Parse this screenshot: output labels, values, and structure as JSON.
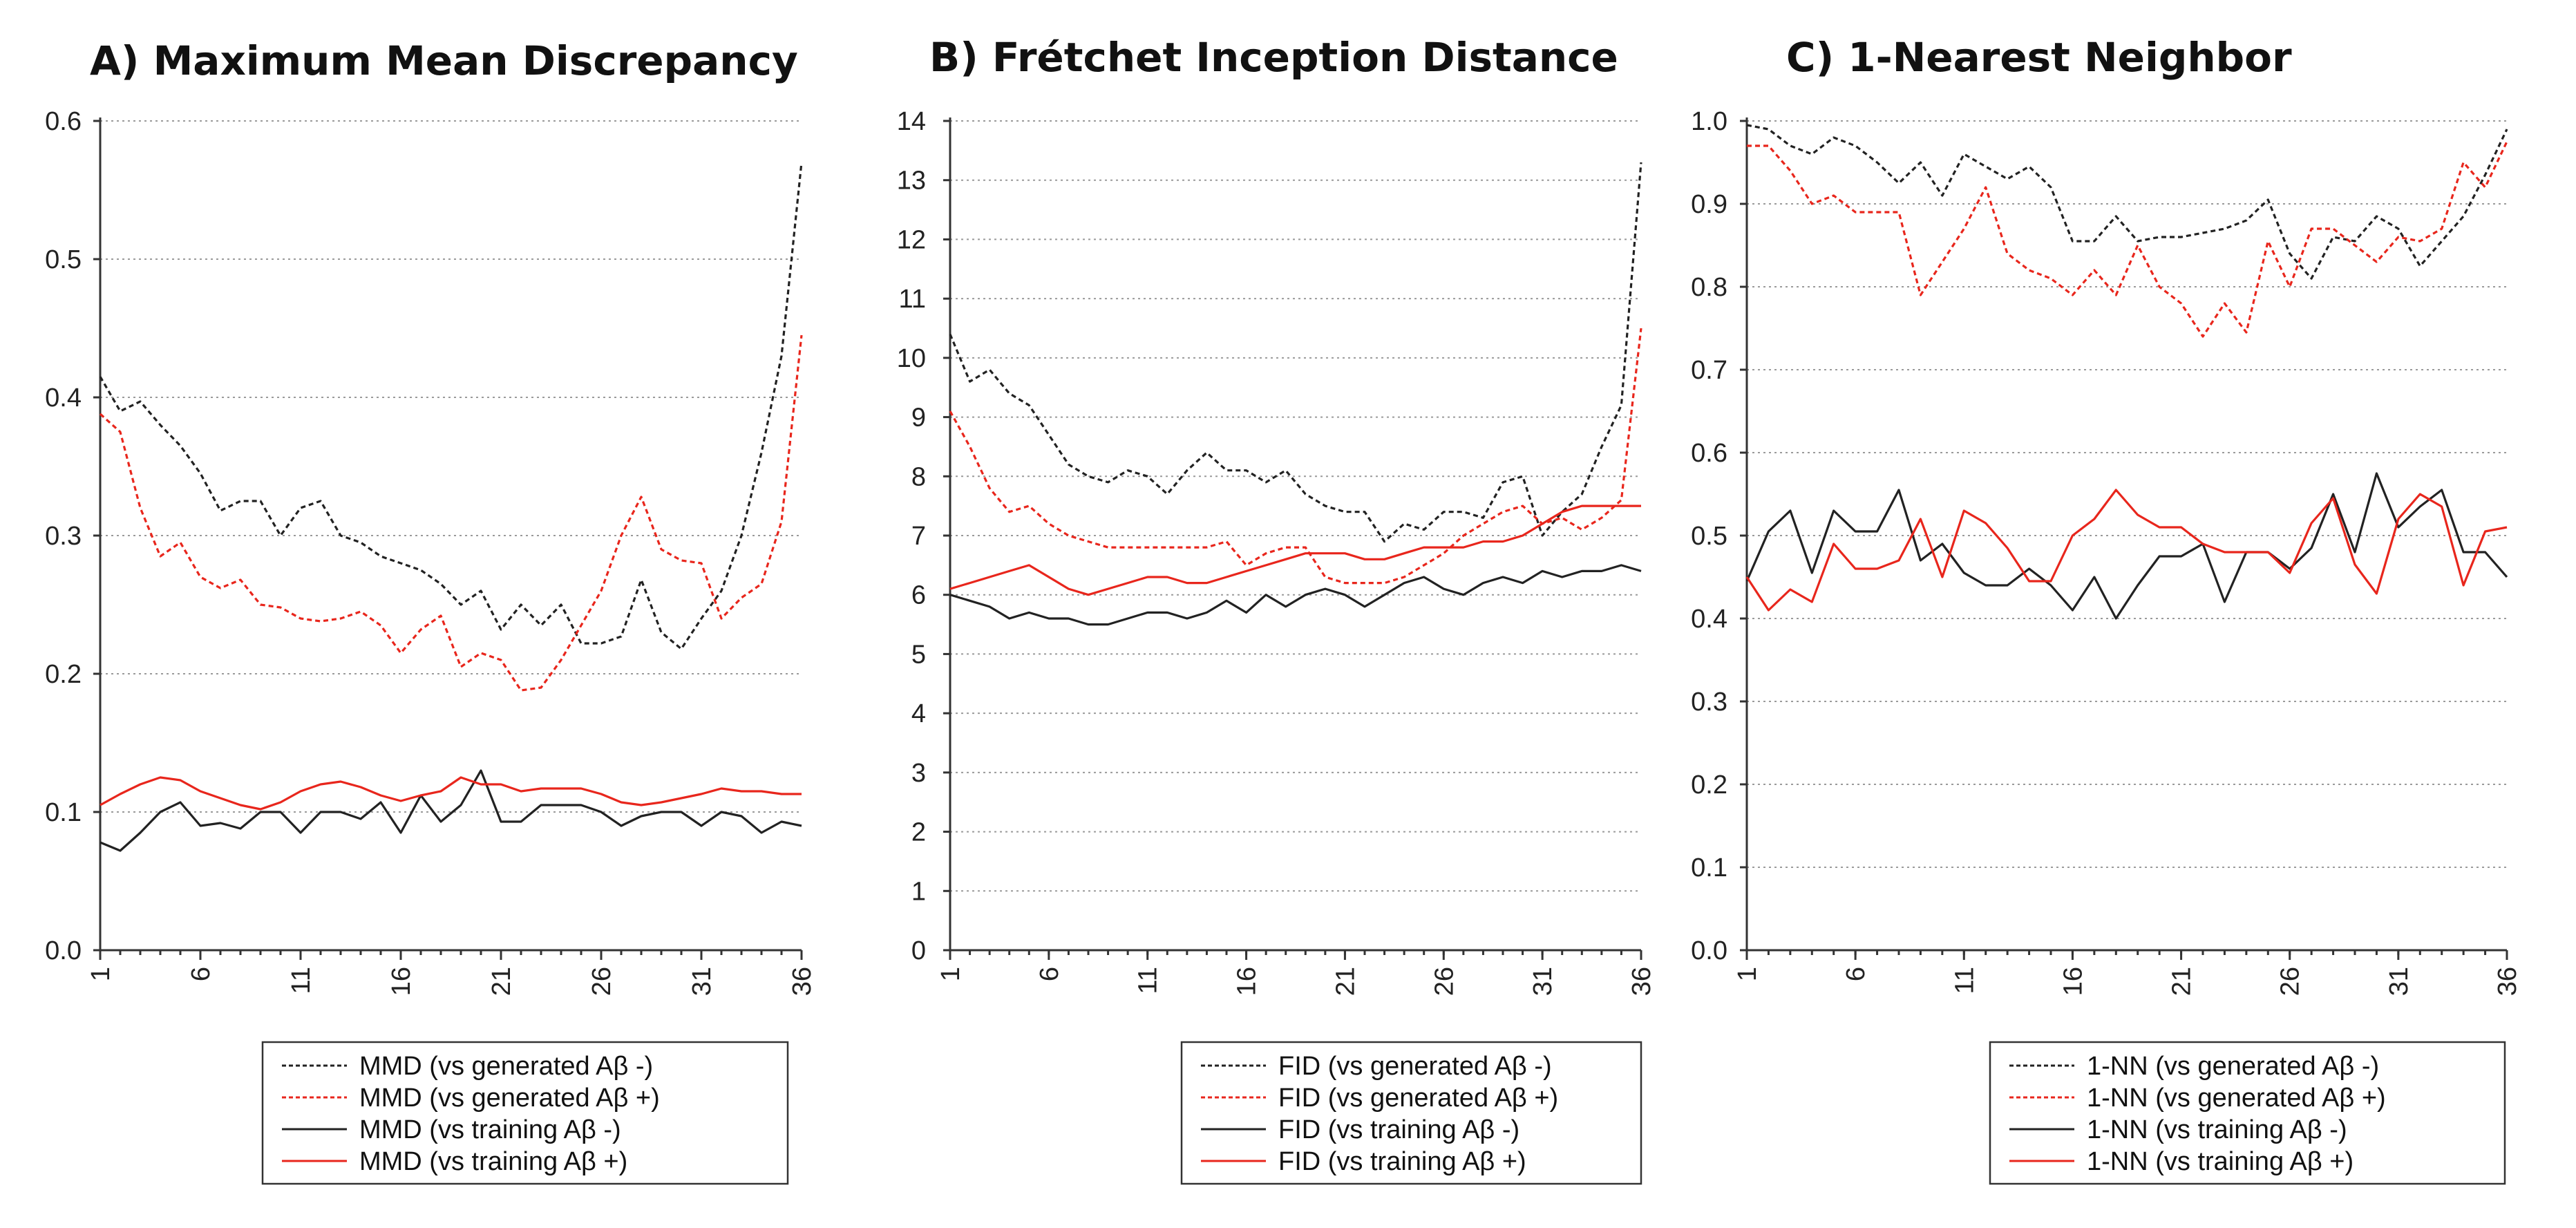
{
  "chart_data": [
    {
      "type": "line",
      "title": "A) Maximum Mean Discrepancy",
      "xlabel": "",
      "ylabel": "",
      "ylim": [
        0,
        0.6
      ],
      "y_ticks": [
        "0.0",
        "0.1",
        "0.2",
        "0.3",
        "0.4",
        "0.5",
        "0.6"
      ],
      "x": [
        1,
        2,
        3,
        4,
        5,
        6,
        7,
        8,
        9,
        10,
        11,
        12,
        13,
        14,
        15,
        16,
        17,
        18,
        19,
        20,
        21,
        22,
        23,
        24,
        25,
        26,
        27,
        28,
        29,
        30,
        31,
        32,
        33,
        34,
        35,
        36
      ],
      "x_ticks": [
        "1",
        "6",
        "11",
        "16",
        "21",
        "26",
        "31",
        "36"
      ],
      "grid": true,
      "series": [
        {
          "name": "MMD (vs generated Aβ -)",
          "color": "#222222",
          "dashed": true,
          "values": [
            0.415,
            0.39,
            0.397,
            0.38,
            0.365,
            0.345,
            0.318,
            0.325,
            0.325,
            0.3,
            0.32,
            0.325,
            0.3,
            0.295,
            0.285,
            0.28,
            0.275,
            0.265,
            0.25,
            0.26,
            0.232,
            0.25,
            0.235,
            0.25,
            0.222,
            0.222,
            0.227,
            0.268,
            0.23,
            0.218,
            0.24,
            0.26,
            0.3,
            0.36,
            0.43,
            0.57
          ]
        },
        {
          "name": "MMD (vs generated Aβ +)",
          "color": "#e8261c",
          "dashed": true,
          "values": [
            0.388,
            0.375,
            0.32,
            0.285,
            0.295,
            0.27,
            0.262,
            0.268,
            0.25,
            0.248,
            0.24,
            0.238,
            0.24,
            0.245,
            0.235,
            0.215,
            0.232,
            0.242,
            0.205,
            0.215,
            0.21,
            0.188,
            0.19,
            0.21,
            0.235,
            0.26,
            0.3,
            0.328,
            0.29,
            0.282,
            0.28,
            0.24,
            0.255,
            0.265,
            0.31,
            0.445
          ]
        },
        {
          "name": "MMD (vs training Aβ -)",
          "color": "#222222",
          "dashed": false,
          "values": [
            0.078,
            0.072,
            0.085,
            0.1,
            0.107,
            0.09,
            0.092,
            0.088,
            0.1,
            0.1,
            0.085,
            0.1,
            0.1,
            0.095,
            0.107,
            0.085,
            0.112,
            0.093,
            0.105,
            0.13,
            0.093,
            0.093,
            0.105,
            0.105,
            0.105,
            0.1,
            0.09,
            0.097,
            0.1,
            0.1,
            0.09,
            0.1,
            0.097,
            0.085,
            0.093,
            0.09
          ]
        },
        {
          "name": "MMD (vs training Aβ +)",
          "color": "#e8261c",
          "dashed": false,
          "values": [
            0.105,
            0.113,
            0.12,
            0.125,
            0.123,
            0.115,
            0.11,
            0.105,
            0.102,
            0.107,
            0.115,
            0.12,
            0.122,
            0.118,
            0.112,
            0.108,
            0.112,
            0.115,
            0.125,
            0.12,
            0.12,
            0.115,
            0.117,
            0.117,
            0.117,
            0.113,
            0.107,
            0.105,
            0.107,
            0.11,
            0.113,
            0.117,
            0.115,
            0.115,
            0.113,
            0.113
          ]
        }
      ]
    },
    {
      "type": "line",
      "title": "B) Frétchet Inception Distance",
      "xlabel": "",
      "ylabel": "",
      "ylim": [
        0,
        14
      ],
      "y_ticks": [
        "0",
        "1",
        "2",
        "3",
        "4",
        "5",
        "6",
        "7",
        "8",
        "9",
        "10",
        "11",
        "12",
        "13",
        "14"
      ],
      "x": [
        1,
        2,
        3,
        4,
        5,
        6,
        7,
        8,
        9,
        10,
        11,
        12,
        13,
        14,
        15,
        16,
        17,
        18,
        19,
        20,
        21,
        22,
        23,
        24,
        25,
        26,
        27,
        28,
        29,
        30,
        31,
        32,
        33,
        34,
        35,
        36
      ],
      "x_ticks": [
        "1",
        "6",
        "11",
        "16",
        "21",
        "26",
        "31",
        "36"
      ],
      "grid": true,
      "series": [
        {
          "name": "FID (vs generated Aβ -)",
          "color": "#222222",
          "dashed": true,
          "values": [
            10.4,
            9.6,
            9.8,
            9.4,
            9.2,
            8.7,
            8.2,
            8.0,
            7.9,
            8.1,
            8.0,
            7.7,
            8.1,
            8.4,
            8.1,
            8.1,
            7.9,
            8.1,
            7.7,
            7.5,
            7.4,
            7.4,
            6.9,
            7.2,
            7.1,
            7.4,
            7.4,
            7.3,
            7.9,
            8.0,
            7.0,
            7.4,
            7.7,
            8.5,
            9.2,
            13.3
          ]
        },
        {
          "name": "FID (vs generated Aβ +)",
          "color": "#e8261c",
          "dashed": true,
          "values": [
            9.1,
            8.5,
            7.8,
            7.4,
            7.5,
            7.2,
            7.0,
            6.9,
            6.8,
            6.8,
            6.8,
            6.8,
            6.8,
            6.8,
            6.9,
            6.5,
            6.7,
            6.8,
            6.8,
            6.3,
            6.2,
            6.2,
            6.2,
            6.3,
            6.5,
            6.7,
            7.0,
            7.2,
            7.4,
            7.5,
            7.2,
            7.3,
            7.1,
            7.3,
            7.6,
            10.5
          ]
        },
        {
          "name": "FID (vs training Aβ -)",
          "color": "#222222",
          "dashed": false,
          "values": [
            6.0,
            5.9,
            5.8,
            5.6,
            5.7,
            5.6,
            5.6,
            5.5,
            5.5,
            5.6,
            5.7,
            5.7,
            5.6,
            5.7,
            5.9,
            5.7,
            6.0,
            5.8,
            6.0,
            6.1,
            6.0,
            5.8,
            6.0,
            6.2,
            6.3,
            6.1,
            6.0,
            6.2,
            6.3,
            6.2,
            6.4,
            6.3,
            6.4,
            6.4,
            6.5,
            6.4
          ]
        },
        {
          "name": "FID (vs training Aβ +)",
          "color": "#e8261c",
          "dashed": false,
          "values": [
            6.1,
            6.2,
            6.3,
            6.4,
            6.5,
            6.3,
            6.1,
            6.0,
            6.1,
            6.2,
            6.3,
            6.3,
            6.2,
            6.2,
            6.3,
            6.4,
            6.5,
            6.6,
            6.7,
            6.7,
            6.7,
            6.6,
            6.6,
            6.7,
            6.8,
            6.8,
            6.8,
            6.9,
            6.9,
            7.0,
            7.2,
            7.4,
            7.5,
            7.5,
            7.5,
            7.5
          ]
        }
      ]
    },
    {
      "type": "line",
      "title": "C) 1-Nearest Neighbor",
      "xlabel": "",
      "ylabel": "",
      "ylim": [
        0,
        1.0
      ],
      "y_ticks": [
        "0.0",
        "0.1",
        "0.2",
        "0.3",
        "0.4",
        "0.5",
        "0.6",
        "0.7",
        "0.8",
        "0.9",
        "1.0"
      ],
      "x": [
        1,
        2,
        3,
        4,
        5,
        6,
        7,
        8,
        9,
        10,
        11,
        12,
        13,
        14,
        15,
        16,
        17,
        18,
        19,
        20,
        21,
        22,
        23,
        24,
        25,
        26,
        27,
        28,
        29,
        30,
        31,
        32,
        33,
        34,
        35,
        36
      ],
      "x_ticks": [
        "1",
        "6",
        "11",
        "16",
        "21",
        "26",
        "31",
        "36"
      ],
      "grid": true,
      "series": [
        {
          "name": "1-NN (vs generated Aβ -)",
          "color": "#222222",
          "dashed": true,
          "values": [
            0.995,
            0.99,
            0.97,
            0.96,
            0.98,
            0.97,
            0.95,
            0.925,
            0.95,
            0.91,
            0.96,
            0.945,
            0.93,
            0.945,
            0.92,
            0.855,
            0.855,
            0.885,
            0.855,
            0.86,
            0.86,
            0.865,
            0.87,
            0.88,
            0.905,
            0.84,
            0.81,
            0.86,
            0.855,
            0.885,
            0.87,
            0.825,
            0.855,
            0.885,
            0.935,
            0.99
          ]
        },
        {
          "name": "1-NN (vs generated Aβ +)",
          "color": "#e8261c",
          "dashed": true,
          "values": [
            0.97,
            0.97,
            0.94,
            0.9,
            0.91,
            0.89,
            0.89,
            0.89,
            0.79,
            0.83,
            0.87,
            0.92,
            0.84,
            0.82,
            0.81,
            0.79,
            0.82,
            0.79,
            0.85,
            0.8,
            0.78,
            0.74,
            0.78,
            0.745,
            0.855,
            0.8,
            0.87,
            0.87,
            0.85,
            0.83,
            0.86,
            0.855,
            0.87,
            0.95,
            0.92,
            0.975
          ]
        },
        {
          "name": "1-NN (vs training Aβ -)",
          "color": "#222222",
          "dashed": false,
          "values": [
            0.445,
            0.505,
            0.53,
            0.455,
            0.53,
            0.505,
            0.505,
            0.555,
            0.47,
            0.49,
            0.455,
            0.44,
            0.44,
            0.46,
            0.44,
            0.41,
            0.45,
            0.4,
            0.44,
            0.475,
            0.475,
            0.49,
            0.42,
            0.48,
            0.48,
            0.46,
            0.485,
            0.55,
            0.48,
            0.575,
            0.51,
            0.535,
            0.555,
            0.48,
            0.48,
            0.45
          ]
        },
        {
          "name": "1-NN (vs training Aβ +)",
          "color": "#e8261c",
          "dashed": false,
          "values": [
            0.45,
            0.41,
            0.435,
            0.42,
            0.49,
            0.46,
            0.46,
            0.47,
            0.52,
            0.45,
            0.53,
            0.515,
            0.485,
            0.445,
            0.445,
            0.5,
            0.52,
            0.555,
            0.525,
            0.51,
            0.51,
            0.49,
            0.48,
            0.48,
            0.48,
            0.455,
            0.515,
            0.545,
            0.465,
            0.43,
            0.52,
            0.55,
            0.535,
            0.44,
            0.505,
            0.51
          ]
        }
      ]
    }
  ]
}
